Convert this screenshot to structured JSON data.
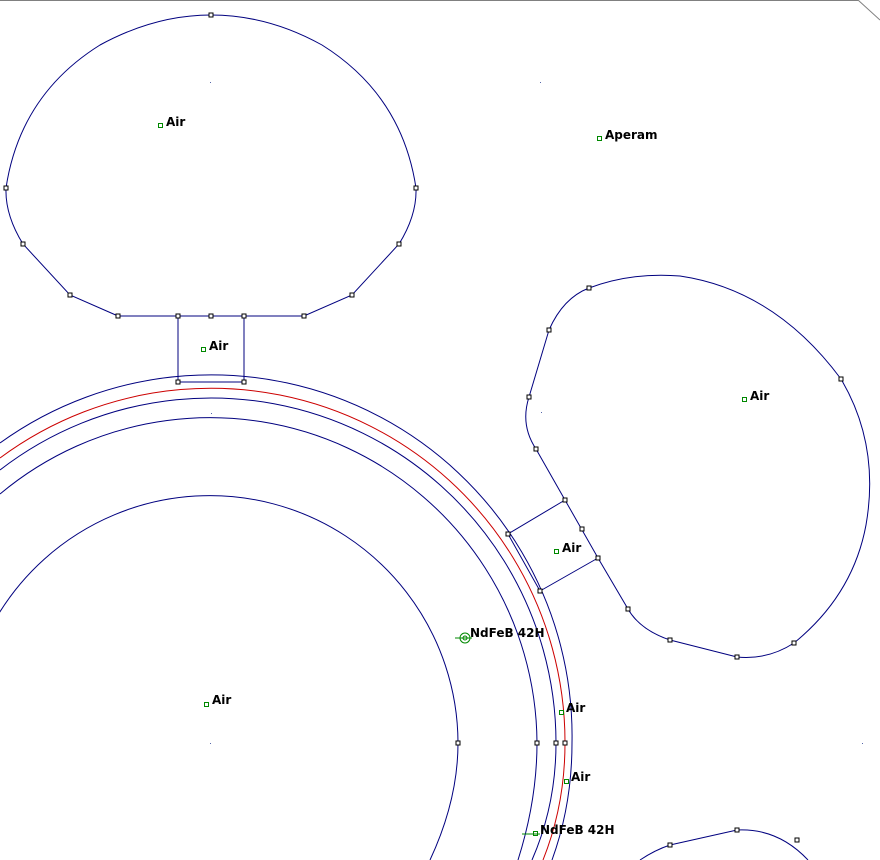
{
  "labels": {
    "air_stator_slot_top": "Air",
    "aperam": "Aperam",
    "air_slot_neck": "Air",
    "air_stator_slot_right": "Air",
    "air_right_neck": "Air",
    "magnet_1": "NdFeB 42H",
    "air_rotor_core": "Air",
    "air_gap_1": "Air",
    "air_gap_2": "Air",
    "magnet_2": "NdFeB 42H"
  },
  "colors": {
    "boundary_line": "#00007f",
    "magnet_line": "#cc0000",
    "node_marker": "#000000",
    "label_marker": "#008800",
    "frame_line": "#808080"
  }
}
